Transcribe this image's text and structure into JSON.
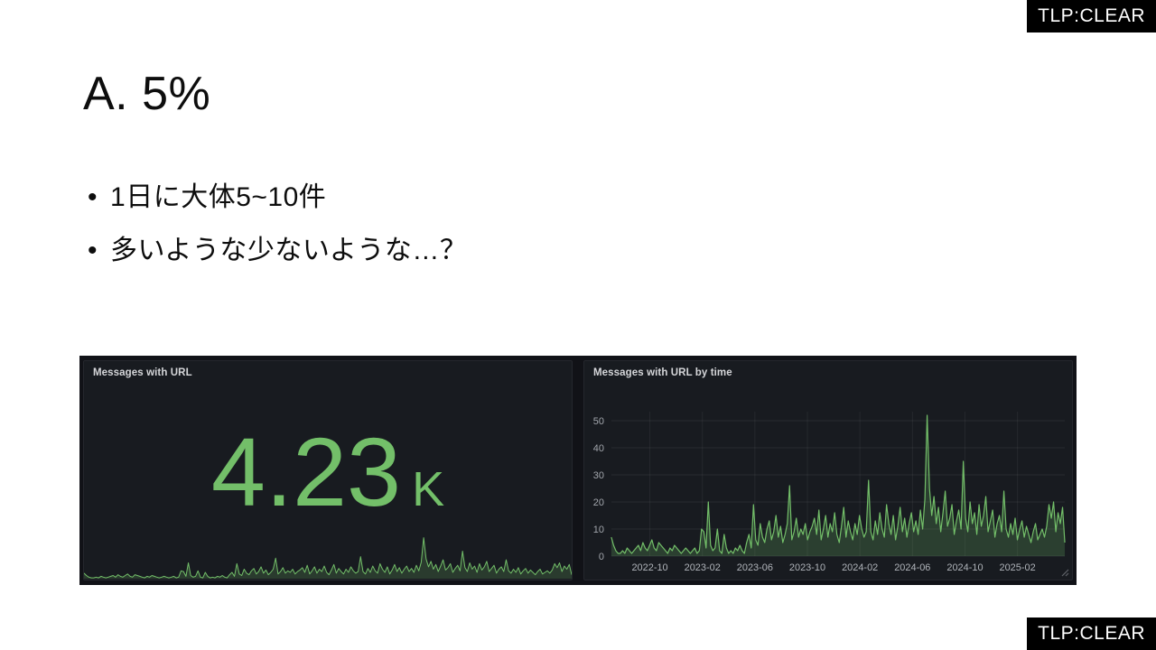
{
  "tlp_badge": {
    "label": "TLP:CLEAR"
  },
  "slide": {
    "title": "A. 5%",
    "bullets": [
      "1日に大体5~10件",
      "多いような少ないような…？"
    ]
  },
  "dashboard": {
    "stat_panel": {
      "title": "Messages with URL",
      "value": "4.23",
      "unit": "K"
    },
    "timeseries_panel": {
      "title": "Messages with URL by time"
    },
    "accent_color": "#73BF69",
    "panel_bg": "#181B20",
    "canvas_bg": "#111217"
  },
  "chart_data": [
    {
      "type": "area",
      "panel": "Messages with URL",
      "role": "sparkline below big stat value",
      "stat_value": "4.23 K",
      "note": "sparkline mirrors the daily series of 'Messages with URL by time'",
      "color": "#73BF69"
    },
    {
      "type": "line",
      "panel": "Messages with URL by time",
      "title": "Messages with URL by time",
      "x_ticks": [
        "2022-10",
        "2023-02",
        "2023-06",
        "2023-10",
        "2024-02",
        "2024-06",
        "2024-10",
        "2025-02"
      ],
      "y_ticks": [
        0,
        10,
        20,
        30,
        40,
        50
      ],
      "ylim": [
        0,
        55
      ],
      "x_range": [
        "2022-07",
        "2025-05"
      ],
      "grid": true,
      "legend": "none",
      "series": [
        {
          "name": "Messages with URL",
          "color": "#73BF69",
          "fill_opacity": 0.22,
          "values": [
            7,
            4,
            2,
            1,
            1,
            2,
            1,
            3,
            2,
            1,
            2,
            3,
            4,
            2,
            5,
            3,
            2,
            4,
            6,
            3,
            2,
            5,
            4,
            3,
            2,
            1,
            3,
            2,
            4,
            3,
            2,
            1,
            2,
            3,
            2,
            1,
            2,
            3,
            1,
            2,
            10,
            9,
            3,
            20,
            4,
            2,
            3,
            10,
            2,
            1,
            8,
            3,
            1,
            2,
            1,
            3,
            2,
            4,
            2,
            1,
            5,
            8,
            3,
            19,
            6,
            4,
            12,
            7,
            5,
            10,
            13,
            6,
            9,
            15,
            7,
            11,
            5,
            8,
            12,
            26,
            6,
            9,
            14,
            7,
            10,
            8,
            12,
            6,
            9,
            11,
            14,
            8,
            17,
            6,
            10,
            15,
            7,
            12,
            9,
            16,
            8,
            5,
            11,
            18,
            7,
            13,
            9,
            6,
            12,
            8,
            15,
            10,
            7,
            9,
            28,
            9,
            6,
            13,
            8,
            16,
            10,
            7,
            19,
            12,
            8,
            15,
            6,
            11,
            18,
            9,
            14,
            7,
            12,
            16,
            9,
            13,
            8,
            17,
            10,
            21,
            52,
            25,
            15,
            22,
            12,
            18,
            9,
            16,
            24,
            11,
            14,
            19,
            8,
            13,
            17,
            10,
            35,
            14,
            9,
            20,
            12,
            16,
            8,
            19,
            11,
            15,
            22,
            9,
            13,
            17,
            7,
            12,
            15,
            9,
            24,
            10,
            7,
            12,
            8,
            14,
            6,
            10,
            13,
            7,
            11,
            8,
            5,
            9,
            12,
            6,
            8,
            10,
            7,
            11,
            19,
            14,
            20,
            9,
            16,
            12,
            18,
            5
          ]
        }
      ]
    }
  ]
}
